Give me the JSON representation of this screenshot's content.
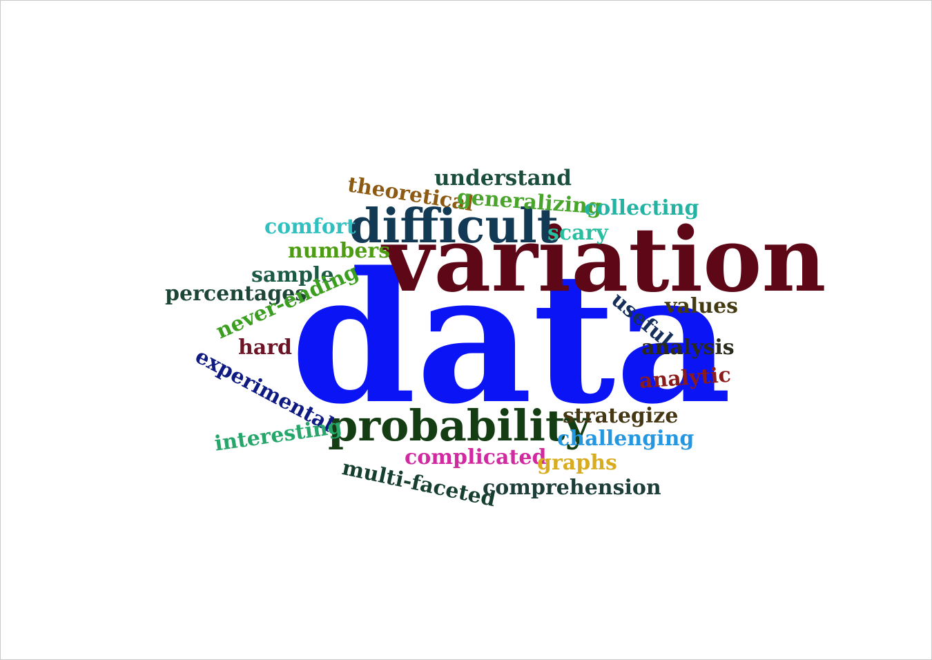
{
  "words": [
    {
      "key": "data",
      "text": "data",
      "color": "#0a14f5"
    },
    {
      "key": "variation",
      "text": "variation",
      "color": "#5e0717"
    },
    {
      "key": "difficult",
      "text": "difficult",
      "color": "#123a55"
    },
    {
      "key": "probability",
      "text": "probability",
      "color": "#143d14"
    },
    {
      "key": "understand",
      "text": "understand",
      "color": "#1b4d3c"
    },
    {
      "key": "theoretical",
      "text": "theoretical",
      "color": "#8c5a12"
    },
    {
      "key": "generalizing",
      "text": "generalizing",
      "color": "#48a42a"
    },
    {
      "key": "collecting",
      "text": "collecting",
      "color": "#22b3a3"
    },
    {
      "key": "comfort",
      "text": "comfort",
      "color": "#2fc0c0"
    },
    {
      "key": "scary",
      "text": "scary",
      "color": "#27bfa0"
    },
    {
      "key": "numbers",
      "text": "numbers",
      "color": "#4e9b14"
    },
    {
      "key": "sample",
      "text": "sample",
      "color": "#1d5a45"
    },
    {
      "key": "percentages",
      "text": "percentages",
      "color": "#1e4637"
    },
    {
      "key": "never-ending",
      "text": "never-ending",
      "color": "#3c9e20"
    },
    {
      "key": "useful",
      "text": "useful",
      "color": "#162f5a"
    },
    {
      "key": "values",
      "text": "values",
      "color": "#433a12"
    },
    {
      "key": "hard",
      "text": "hard",
      "color": "#6b1426"
    },
    {
      "key": "experimental",
      "text": "experimental",
      "color": "#0e1a82"
    },
    {
      "key": "analysis",
      "text": "analysis",
      "color": "#2a2a1a"
    },
    {
      "key": "analytic",
      "text": "analytic",
      "color": "#8a1c1c"
    },
    {
      "key": "strategize",
      "text": "strategize",
      "color": "#463714"
    },
    {
      "key": "challenging",
      "text": "challenging",
      "color": "#2497e0"
    },
    {
      "key": "interesting",
      "text": "interesting",
      "color": "#26a66a"
    },
    {
      "key": "complicated",
      "text": "complicated",
      "color": "#d12aa0"
    },
    {
      "key": "graphs",
      "text": "graphs",
      "color": "#d8ac1e"
    },
    {
      "key": "multi-faceted",
      "text": "multi-faceted",
      "color": "#163f2f"
    },
    {
      "key": "comprehension",
      "text": "comprehension",
      "color": "#1c3d38"
    }
  ]
}
